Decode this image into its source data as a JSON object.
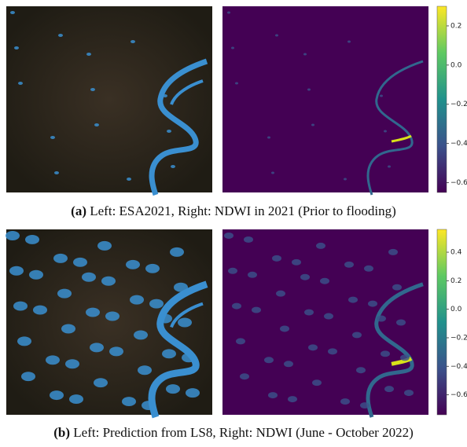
{
  "panels": [
    {
      "label": "(a)",
      "caption": "Left: ESA2021, Right: NDWI in 2021 (Prior to flooding)",
      "colorbar": {
        "lim": [
          -0.65,
          0.3
        ],
        "ticks": [
          0.2,
          {
            "value": 0,
            "label": "0.0"
          },
          {
            "value": -0.2,
            "label": "−0.2"
          },
          {
            "value": -0.4,
            "label": "−0.4"
          },
          {
            "value": -0.6,
            "label": "−0.6"
          }
        ]
      }
    },
    {
      "label": "(b)",
      "caption": "Left: Prediction from LS8, Right: NDWI (June - October 2022)",
      "colorbar": {
        "lim": [
          -0.74,
          0.56
        ],
        "ticks": [
          0.4,
          0.2,
          {
            "value": 0,
            "label": "0.0"
          },
          {
            "value": -0.2,
            "label": "−0.2"
          },
          {
            "value": -0.4,
            "label": "−0.4"
          },
          {
            "value": -0.6,
            "label": "−0.6"
          }
        ]
      }
    }
  ]
}
